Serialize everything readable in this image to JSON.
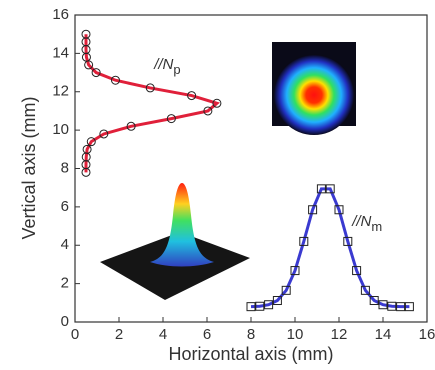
{
  "chart_data": {
    "type": "scatter",
    "xlabel": "Horizontal axis (mm)",
    "ylabel": "Vertical axis (mm)",
    "xlim": [
      0,
      16
    ],
    "ylim": [
      0,
      16
    ],
    "xticks": [
      0,
      2,
      4,
      6,
      8,
      10,
      12,
      14,
      16
    ],
    "yticks": [
      0,
      2,
      4,
      6,
      8,
      10,
      12,
      14,
      16
    ],
    "annotations": [
      {
        "text": "//N",
        "sub": "p",
        "x": 3.6,
        "y": 13.4
      },
      {
        "text": "//N",
        "sub": "m",
        "x": 12.6,
        "y": 5.2
      }
    ],
    "series": [
      {
        "color": "#e0203a",
        "marker": "circle",
        "x": [
          0.5,
          0.5,
          0.51,
          0.55,
          0.74,
          1.31,
          2.55,
          4.38,
          6.04,
          6.45,
          5.3,
          3.42,
          1.84,
          0.96,
          0.62,
          0.52,
          0.5,
          0.5,
          0.5
        ],
        "y": [
          7.8,
          8.2,
          8.6,
          9.0,
          9.4,
          9.8,
          10.2,
          10.6,
          11.0,
          11.4,
          11.8,
          12.2,
          12.6,
          13.0,
          13.4,
          13.8,
          14.2,
          14.6,
          15.0
        ]
      },
      {
        "color": "#3a3ad0",
        "marker": "square",
        "x": [
          8.0,
          8.4,
          8.8,
          9.2,
          9.6,
          10.0,
          10.4,
          10.8,
          11.2,
          11.6,
          12.0,
          12.4,
          12.8,
          13.2,
          13.6,
          14.0,
          14.4,
          14.8,
          15.2
        ],
        "y": [
          0.8,
          0.82,
          0.9,
          1.12,
          1.65,
          2.68,
          4.2,
          5.85,
          6.94,
          6.94,
          5.85,
          4.2,
          2.68,
          1.65,
          1.12,
          0.9,
          0.82,
          0.8,
          0.8
        ]
      }
    ]
  }
}
